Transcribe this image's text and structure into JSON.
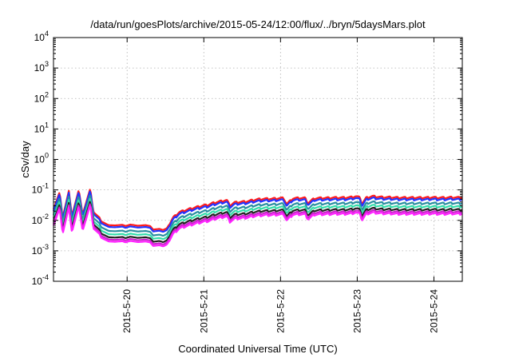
{
  "chart_data": {
    "type": "line",
    "title": "/data/run/goesPlots/archive/2015-05-24/12:00/flux/../bryn/5daysMars.plot",
    "xlabel": "Coordinated Universal Time (UTC)",
    "ylabel": "cSv/day",
    "yscale": "log",
    "ylim": [
      0.0001,
      10000
    ],
    "xlim": [
      0,
      5.33
    ],
    "grid": true,
    "legend": "none",
    "yticks": [
      {
        "base": "10",
        "exp": "-4"
      },
      {
        "base": "10",
        "exp": "-3"
      },
      {
        "base": "10",
        "exp": "-2"
      },
      {
        "base": "10",
        "exp": "-1"
      },
      {
        "base": "10",
        "exp": "0"
      },
      {
        "base": "10",
        "exp": "1"
      },
      {
        "base": "10",
        "exp": "2"
      },
      {
        "base": "10",
        "exp": "3"
      },
      {
        "base": "10",
        "exp": "4"
      }
    ],
    "xticks": [
      {
        "x": 0.96,
        "label": "2015-5-20"
      },
      {
        "x": 1.96,
        "label": "2015-5-21"
      },
      {
        "x": 2.96,
        "label": "2015-5-22"
      },
      {
        "x": 3.96,
        "label": "2015-5-23"
      },
      {
        "x": 4.96,
        "label": "2015-5-24"
      }
    ],
    "base_profile": {
      "x": [
        0.0,
        0.08,
        0.12,
        0.2,
        0.24,
        0.33,
        0.38,
        0.48,
        0.52,
        0.6,
        0.62,
        0.72,
        0.8,
        0.9,
        0.94,
        1.0,
        1.1,
        1.2,
        1.26,
        1.3,
        1.38,
        1.43,
        1.48,
        1.56,
        1.64,
        1.72,
        1.8,
        1.88,
        1.96,
        2.02,
        2.08,
        2.14,
        2.2,
        2.26,
        2.3,
        2.36,
        2.44,
        2.52,
        2.6,
        2.68,
        2.76,
        2.84,
        2.92,
        3.0,
        3.04,
        3.12,
        3.2,
        3.28,
        3.32,
        3.4,
        3.48,
        3.56,
        3.64,
        3.72,
        3.8,
        3.88,
        3.94,
        4.0,
        4.02,
        4.08,
        4.16,
        4.24,
        4.32,
        4.4,
        4.48,
        4.56,
        4.64,
        4.72,
        4.8,
        4.88,
        4.94,
        5.0,
        5.06,
        5.12,
        5.2,
        5.28,
        5.33
      ],
      "y": [
        0.015,
        0.055,
        0.008,
        0.06,
        0.009,
        0.065,
        0.01,
        0.072,
        0.012,
        0.008,
        0.006,
        0.0045,
        0.0044,
        0.0046,
        0.0042,
        0.0047,
        0.0043,
        0.0045,
        0.0042,
        0.0032,
        0.0034,
        0.0031,
        0.0036,
        0.008,
        0.012,
        0.014,
        0.016,
        0.018,
        0.02,
        0.021,
        0.024,
        0.026,
        0.028,
        0.03,
        0.02,
        0.025,
        0.026,
        0.027,
        0.03,
        0.032,
        0.033,
        0.033,
        0.034,
        0.035,
        0.022,
        0.034,
        0.035,
        0.035,
        0.024,
        0.034,
        0.035,
        0.035,
        0.036,
        0.036,
        0.036,
        0.037,
        0.04,
        0.036,
        0.022,
        0.036,
        0.04,
        0.038,
        0.037,
        0.037,
        0.036,
        0.036,
        0.036,
        0.036,
        0.036,
        0.036,
        0.037,
        0.036,
        0.036,
        0.036,
        0.037,
        0.036,
        0.037
      ]
    },
    "series": [
      {
        "color": "#ff1a1a",
        "factor": 1.55
      },
      {
        "color": "#2233ff",
        "factor": 1.35
      },
      {
        "color": "#2a8fa0",
        "factor": 1.0
      },
      {
        "color": "#33ddaa",
        "factor": 0.78
      },
      {
        "color": "#222222",
        "factor": 0.62
      },
      {
        "color": "#cc22cc",
        "factor": 0.52
      },
      {
        "color": "#ff22ff",
        "factor": 0.45
      }
    ],
    "oscillation": {
      "period": 0.1,
      "amplitude": 0.18
    }
  }
}
